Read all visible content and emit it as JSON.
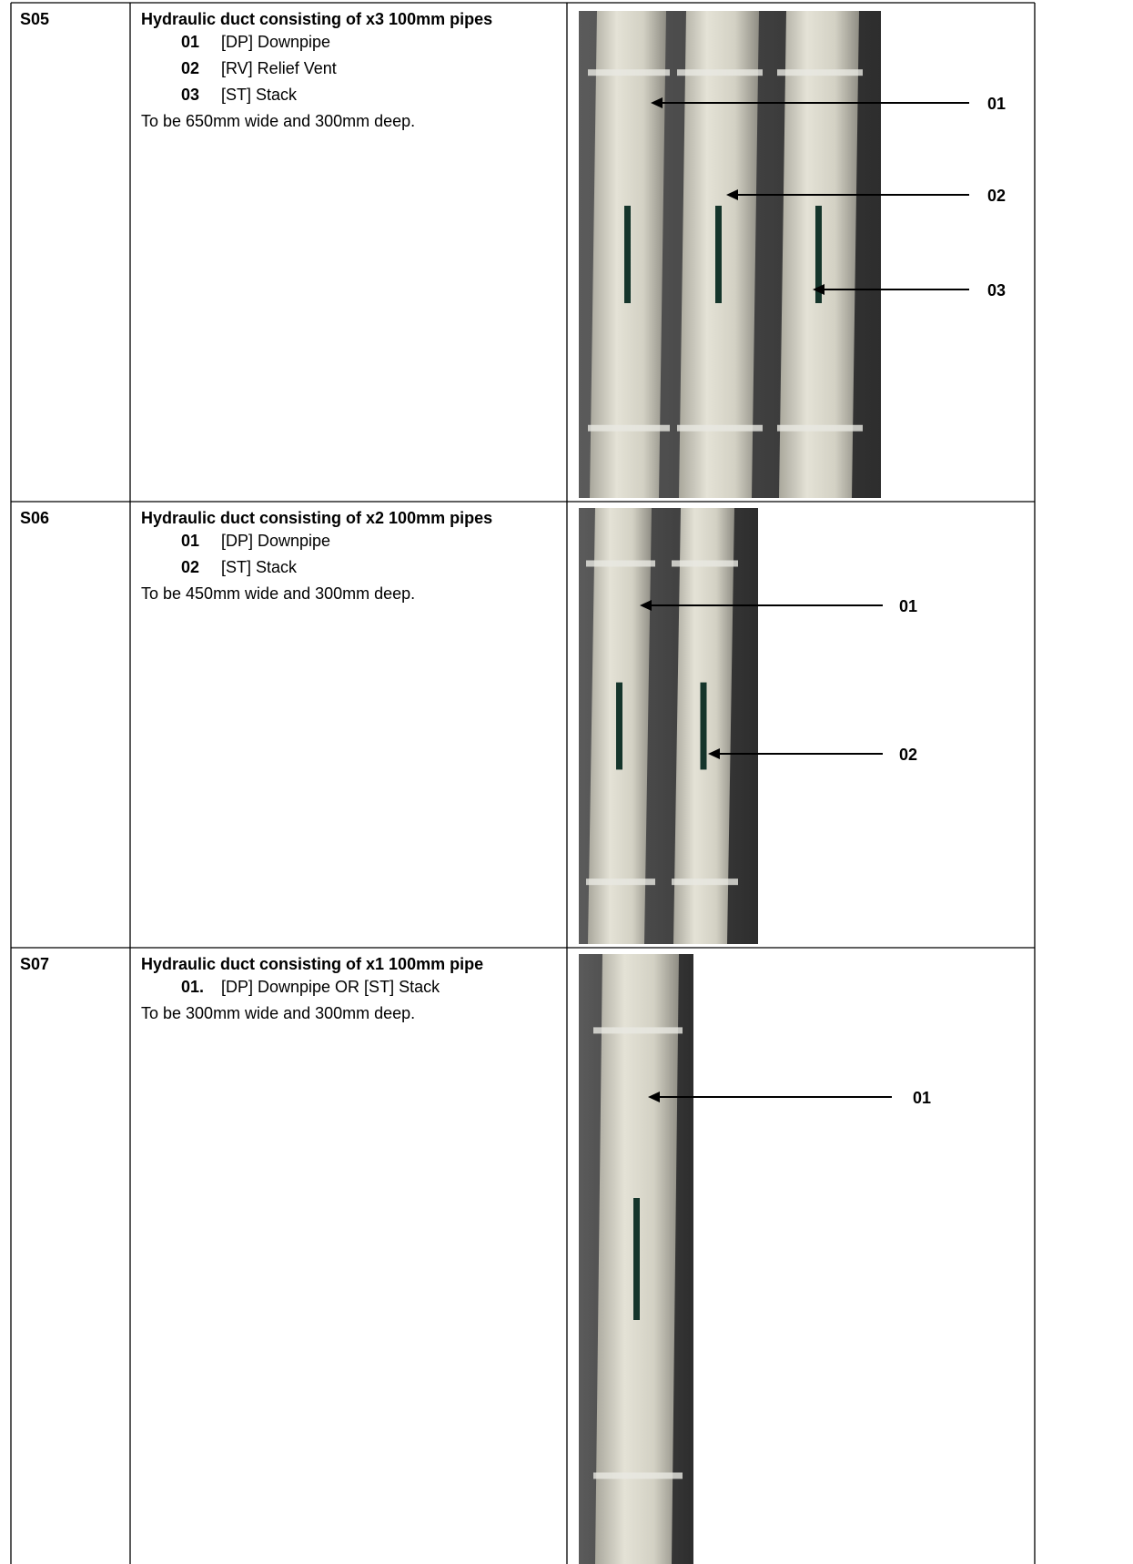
{
  "table": {
    "rows": [
      {
        "code": "S05",
        "title": "Hydraulic duct consisting of x3 100mm pipes",
        "items": [
          {
            "num": "01",
            "text": "[DP] Downpipe"
          },
          {
            "num": "02",
            "text": "[RV] Relief Vent"
          },
          {
            "num": "03",
            "text": "[ST] Stack"
          }
        ],
        "note": "To be 650mm wide and 300mm deep.",
        "callouts": [
          "01",
          "02",
          "03"
        ]
      },
      {
        "code": "S06",
        "title": "Hydraulic duct consisting of x2 100mm pipes",
        "items": [
          {
            "num": "01",
            "text": "[DP] Downpipe"
          },
          {
            "num": "02",
            "text": "[ST] Stack"
          }
        ],
        "note": "To be 450mm wide and 300mm deep.",
        "callouts": [
          "01",
          "02"
        ]
      },
      {
        "code": "S07",
        "title": "Hydraulic duct consisting of x1 100mm pipe",
        "items": [
          {
            "num": "01.",
            "text": "[DP] Downpipe OR [ST] Stack"
          }
        ],
        "note": "To be 300mm wide and 300mm deep.",
        "callouts": [
          "01"
        ]
      }
    ]
  }
}
